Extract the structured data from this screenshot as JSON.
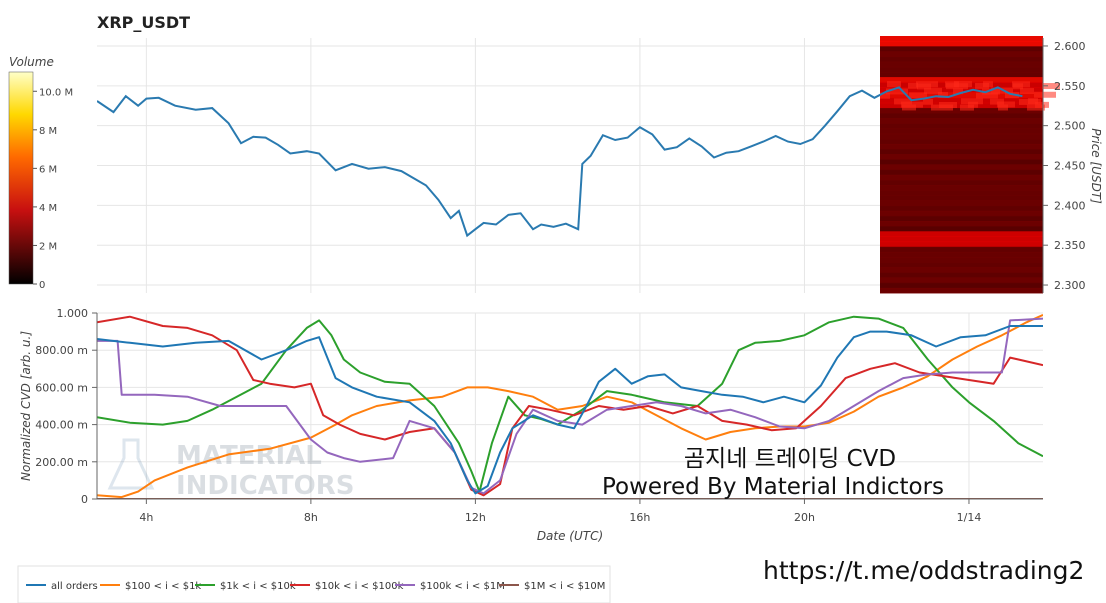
{
  "title": "XRP_USDT",
  "watermark": {
    "line1": "곰지네 트레이딩 CVD",
    "line2": "Powered By Material Indictors",
    "logo_line1": "MATERIAL",
    "logo_line2": "INDICATORS"
  },
  "link": "https://t.me/oddstrading2",
  "colorbar": {
    "label": "Volume",
    "ticks": [
      "10.0 M",
      "8 M",
      "6 M",
      "4 M",
      "2 M",
      "0"
    ],
    "values": [
      10,
      8,
      6,
      4,
      2,
      0
    ]
  },
  "colors": {
    "all_orders": "#1f77b4",
    "s100_1k": "#ff7f0e",
    "s1k_10k": "#2ca02c",
    "s10k_100k": "#d62728",
    "s100k_1m": "#9467bd",
    "s1m_10m": "#8c564b"
  },
  "chart_data": [
    {
      "type": "line",
      "name": "price",
      "ylabel": "Price [USDT]",
      "ylim": [
        2.29,
        2.61
      ],
      "y_ticks": [
        "2.600",
        "2.550",
        "2.500",
        "2.450",
        "2.400",
        "2.350",
        "2.300"
      ],
      "y_tick_values": [
        2.6,
        2.55,
        2.5,
        2.45,
        2.4,
        2.35,
        2.3
      ],
      "x_hours": [
        2.8,
        3.2,
        3.5,
        3.8,
        4.0,
        4.3,
        4.7,
        5.2,
        5.6,
        6.0,
        6.3,
        6.6,
        6.9,
        7.2,
        7.5,
        7.9,
        8.2,
        8.6,
        9.0,
        9.4,
        9.8,
        10.2,
        10.5,
        10.8,
        11.1,
        11.4,
        11.6,
        11.8,
        12.0,
        12.2,
        12.5,
        12.8,
        13.1,
        13.4,
        13.6,
        13.9,
        14.2,
        14.5,
        14.6,
        14.8,
        15.1,
        15.4,
        15.7,
        16.0,
        16.3,
        16.6,
        16.9,
        17.2,
        17.5,
        17.8,
        18.1,
        18.4,
        18.7,
        19.0,
        19.3,
        19.6,
        19.9,
        20.2,
        20.5,
        20.8,
        21.1,
        21.4,
        21.7,
        22.0,
        22.3,
        22.6,
        22.9,
        23.2,
        23.5,
        23.8,
        24.1,
        24.4,
        24.7,
        25.0,
        25.3
      ],
      "price": [
        2.531,
        2.517,
        2.537,
        2.525,
        2.534,
        2.535,
        2.525,
        2.52,
        2.522,
        2.503,
        2.478,
        2.486,
        2.485,
        2.476,
        2.465,
        2.468,
        2.465,
        2.444,
        2.452,
        2.446,
        2.448,
        2.443,
        2.434,
        2.425,
        2.407,
        2.384,
        2.393,
        2.362,
        2.37,
        2.378,
        2.376,
        2.388,
        2.39,
        2.37,
        2.376,
        2.373,
        2.377,
        2.37,
        2.452,
        2.462,
        2.488,
        2.482,
        2.485,
        2.498,
        2.489,
        2.47,
        2.473,
        2.484,
        2.474,
        2.46,
        2.466,
        2.468,
        2.474,
        2.48,
        2.487,
        2.48,
        2.477,
        2.483,
        2.5,
        2.518,
        2.537,
        2.544,
        2.535,
        2.543,
        2.548,
        2.532,
        2.534,
        2.537,
        2.536,
        2.541,
        2.545,
        2.542,
        2.548,
        2.54,
        2.537
      ]
    },
    {
      "type": "line",
      "name": "cvd",
      "xlabel": "Date (UTC)",
      "ylabel": "Normalized CVD [arb. u.]",
      "ylim": [
        0,
        1
      ],
      "y_ticks": [
        "1.000",
        "800.00 m",
        "600.00 m",
        "400.00 m",
        "200.00 m",
        "0"
      ],
      "y_tick_values": [
        1,
        0.8,
        0.6,
        0.4,
        0.2,
        0
      ],
      "x_ticks": [
        "4h",
        "8h",
        "12h",
        "16h",
        "20h",
        "1/14"
      ],
      "x_tick_hours": [
        4,
        8,
        12,
        16,
        20,
        24
      ],
      "x_range_hours": [
        2.8,
        25.8
      ],
      "legend": [
        "all orders",
        "$100 < i < $1k",
        "$1k < i < $10k",
        "$10k < i < $100k",
        "$100k < i < $1M",
        "$1M < i < $10M"
      ],
      "series": [
        {
          "name": "all orders",
          "x": [
            2.8,
            3.6,
            4.4,
            5.2,
            6.0,
            6.8,
            7.4,
            7.9,
            8.2,
            8.6,
            9.0,
            9.6,
            10.4,
            11.0,
            11.4,
            11.8,
            12.0,
            12.3,
            12.6,
            12.9,
            13.4,
            14.0,
            14.4,
            14.7,
            15.0,
            15.4,
            15.8,
            16.2,
            16.6,
            17.0,
            17.5,
            18.0,
            18.5,
            19.0,
            19.5,
            20.0,
            20.4,
            20.8,
            21.2,
            21.6,
            22.0,
            22.6,
            23.2,
            23.8,
            24.4,
            25.0,
            25.8
          ],
          "values": [
            0.86,
            0.84,
            0.82,
            0.84,
            0.85,
            0.75,
            0.8,
            0.85,
            0.87,
            0.65,
            0.6,
            0.55,
            0.52,
            0.42,
            0.3,
            0.1,
            0.03,
            0.07,
            0.25,
            0.38,
            0.45,
            0.4,
            0.38,
            0.5,
            0.63,
            0.7,
            0.62,
            0.66,
            0.67,
            0.6,
            0.58,
            0.56,
            0.55,
            0.52,
            0.55,
            0.52,
            0.61,
            0.76,
            0.87,
            0.9,
            0.9,
            0.88,
            0.82,
            0.87,
            0.88,
            0.93,
            0.93
          ]
        },
        {
          "name": "$100 < i < $1k",
          "x": [
            2.8,
            3.4,
            3.8,
            4.2,
            5.0,
            6.0,
            7.0,
            8.0,
            8.6,
            9.0,
            9.6,
            10.4,
            11.2,
            11.8,
            12.3,
            12.8,
            13.4,
            14.0,
            14.6,
            15.2,
            15.8,
            16.4,
            17.0,
            17.6,
            18.2,
            18.8,
            19.4,
            20.0,
            20.6,
            21.2,
            21.8,
            22.4,
            23.0,
            23.6,
            24.2,
            24.8,
            25.4,
            25.8
          ],
          "values": [
            0.02,
            0.01,
            0.04,
            0.1,
            0.17,
            0.24,
            0.27,
            0.33,
            0.4,
            0.45,
            0.5,
            0.53,
            0.55,
            0.6,
            0.6,
            0.58,
            0.55,
            0.48,
            0.5,
            0.55,
            0.52,
            0.45,
            0.38,
            0.32,
            0.36,
            0.38,
            0.39,
            0.39,
            0.41,
            0.47,
            0.55,
            0.6,
            0.66,
            0.75,
            0.82,
            0.88,
            0.95,
            0.99
          ]
        },
        {
          "name": "$1k < i < $10k",
          "x": [
            2.8,
            3.6,
            4.4,
            5.0,
            5.6,
            6.2,
            6.8,
            7.4,
            7.9,
            8.2,
            8.5,
            8.8,
            9.2,
            9.8,
            10.4,
            11.0,
            11.6,
            11.9,
            12.1,
            12.4,
            12.8,
            13.2,
            13.6,
            14.0,
            14.6,
            15.2,
            15.8,
            16.6,
            17.4,
            18.0,
            18.4,
            18.8,
            19.4,
            20.0,
            20.6,
            21.2,
            21.8,
            22.4,
            23.0,
            23.6,
            24.0,
            24.6,
            25.2,
            25.8
          ],
          "values": [
            0.44,
            0.41,
            0.4,
            0.42,
            0.48,
            0.55,
            0.62,
            0.8,
            0.92,
            0.96,
            0.88,
            0.75,
            0.68,
            0.63,
            0.62,
            0.5,
            0.3,
            0.15,
            0.04,
            0.3,
            0.55,
            0.45,
            0.43,
            0.4,
            0.48,
            0.58,
            0.56,
            0.52,
            0.5,
            0.62,
            0.8,
            0.84,
            0.85,
            0.88,
            0.95,
            0.98,
            0.97,
            0.92,
            0.75,
            0.6,
            0.52,
            0.42,
            0.3,
            0.23
          ]
        },
        {
          "name": "$10k < i < $100k",
          "x": [
            2.8,
            3.6,
            4.4,
            5.0,
            5.6,
            6.2,
            6.6,
            7.0,
            7.6,
            8.0,
            8.3,
            8.7,
            9.2,
            9.8,
            10.4,
            11.0,
            11.5,
            11.9,
            12.2,
            12.6,
            12.9,
            13.3,
            13.8,
            14.4,
            15.0,
            15.6,
            16.2,
            16.8,
            17.4,
            18.0,
            18.6,
            19.2,
            19.8,
            20.4,
            21.0,
            21.6,
            22.2,
            22.8,
            23.4,
            24.0,
            24.6,
            25.0,
            25.8
          ],
          "values": [
            0.95,
            0.98,
            0.93,
            0.92,
            0.88,
            0.8,
            0.64,
            0.62,
            0.6,
            0.62,
            0.45,
            0.4,
            0.35,
            0.32,
            0.36,
            0.38,
            0.25,
            0.05,
            0.02,
            0.08,
            0.38,
            0.5,
            0.48,
            0.45,
            0.5,
            0.48,
            0.5,
            0.46,
            0.5,
            0.42,
            0.4,
            0.37,
            0.38,
            0.5,
            0.65,
            0.7,
            0.73,
            0.68,
            0.66,
            0.64,
            0.62,
            0.76,
            0.72
          ]
        },
        {
          "name": "$100k < i < $1M",
          "x": [
            2.8,
            3.3,
            3.4,
            4.2,
            5.0,
            5.8,
            6.6,
            7.4,
            8.0,
            8.4,
            8.8,
            9.2,
            10.0,
            10.4,
            11.0,
            11.5,
            11.9,
            12.2,
            12.6,
            13.0,
            13.4,
            14.0,
            14.6,
            15.2,
            15.8,
            16.4,
            17.0,
            17.6,
            18.2,
            18.8,
            19.4,
            20.0,
            20.6,
            21.2,
            21.8,
            22.4,
            23.0,
            23.6,
            24.2,
            24.8,
            25.0,
            25.8
          ],
          "values": [
            0.85,
            0.85,
            0.56,
            0.56,
            0.55,
            0.5,
            0.5,
            0.5,
            0.32,
            0.25,
            0.22,
            0.2,
            0.22,
            0.42,
            0.38,
            0.25,
            0.06,
            0.03,
            0.1,
            0.35,
            0.48,
            0.42,
            0.4,
            0.48,
            0.5,
            0.52,
            0.5,
            0.46,
            0.48,
            0.44,
            0.39,
            0.38,
            0.42,
            0.5,
            0.58,
            0.65,
            0.67,
            0.68,
            0.68,
            0.68,
            0.96,
            0.97
          ]
        },
        {
          "name": "$1M < i < $10M",
          "x": [
            2.8,
            25.8
          ],
          "values": [
            0.0,
            0.0
          ]
        }
      ]
    }
  ]
}
